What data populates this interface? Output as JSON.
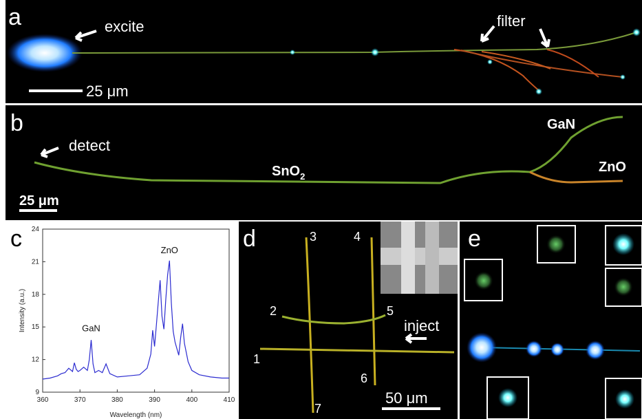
{
  "panels": {
    "a": {
      "label": "a",
      "excite": "excite",
      "filter": "filter",
      "scale": "25 μm"
    },
    "b": {
      "label": "b",
      "detect": "detect",
      "gan": "GaN",
      "zno": "ZnO",
      "sno2": "SnO",
      "sno2_sub": "2",
      "scale": "25 μm"
    },
    "c": {
      "label": "c"
    },
    "d": {
      "label": "d",
      "numbers": [
        "1",
        "2",
        "3",
        "4",
        "5",
        "6",
        "7"
      ],
      "inject": "inject",
      "scale": "50 μm"
    },
    "e": {
      "label": "e"
    }
  },
  "chart_data": {
    "type": "line",
    "color": "#2b2bd0",
    "x": [
      360,
      362,
      364,
      365,
      366,
      367,
      368,
      368.5,
      369,
      369.5,
      370,
      371,
      372,
      372.5,
      373,
      373.5,
      374,
      375,
      376,
      377,
      378,
      380,
      383,
      386,
      388,
      389,
      389.5,
      390,
      390.5,
      391,
      391.5,
      392,
      392.5,
      393,
      393.5,
      394,
      394.5,
      395,
      395.5,
      396,
      396.5,
      397,
      397.5,
      398,
      399,
      400,
      402,
      405,
      408,
      410
    ],
    "values": [
      10.2,
      10.3,
      10.5,
      10.7,
      10.8,
      11.2,
      10.9,
      11.7,
      11.1,
      10.9,
      11.0,
      11.3,
      11.0,
      12.0,
      13.8,
      11.6,
      10.8,
      11.0,
      10.8,
      11.6,
      10.7,
      10.4,
      10.5,
      10.6,
      11.2,
      12.5,
      14.7,
      13.2,
      15.2,
      17.3,
      19.3,
      16.0,
      14.8,
      17.5,
      19.8,
      21.1,
      17.2,
      14.6,
      13.6,
      13.0,
      12.4,
      14.0,
      15.3,
      13.5,
      11.8,
      11.0,
      10.6,
      10.4,
      10.3,
      10.3
    ],
    "xlim": [
      360,
      410
    ],
    "ylim": [
      9,
      24
    ],
    "xticks": [
      360,
      370,
      380,
      390,
      400,
      410
    ],
    "yticks": [
      9,
      12,
      15,
      18,
      21,
      24
    ],
    "xlabel": "Wavelength (nm)",
    "ylabel": "Intensity (a.u.)",
    "annotations": [
      "GaN",
      "ZnO"
    ]
  }
}
